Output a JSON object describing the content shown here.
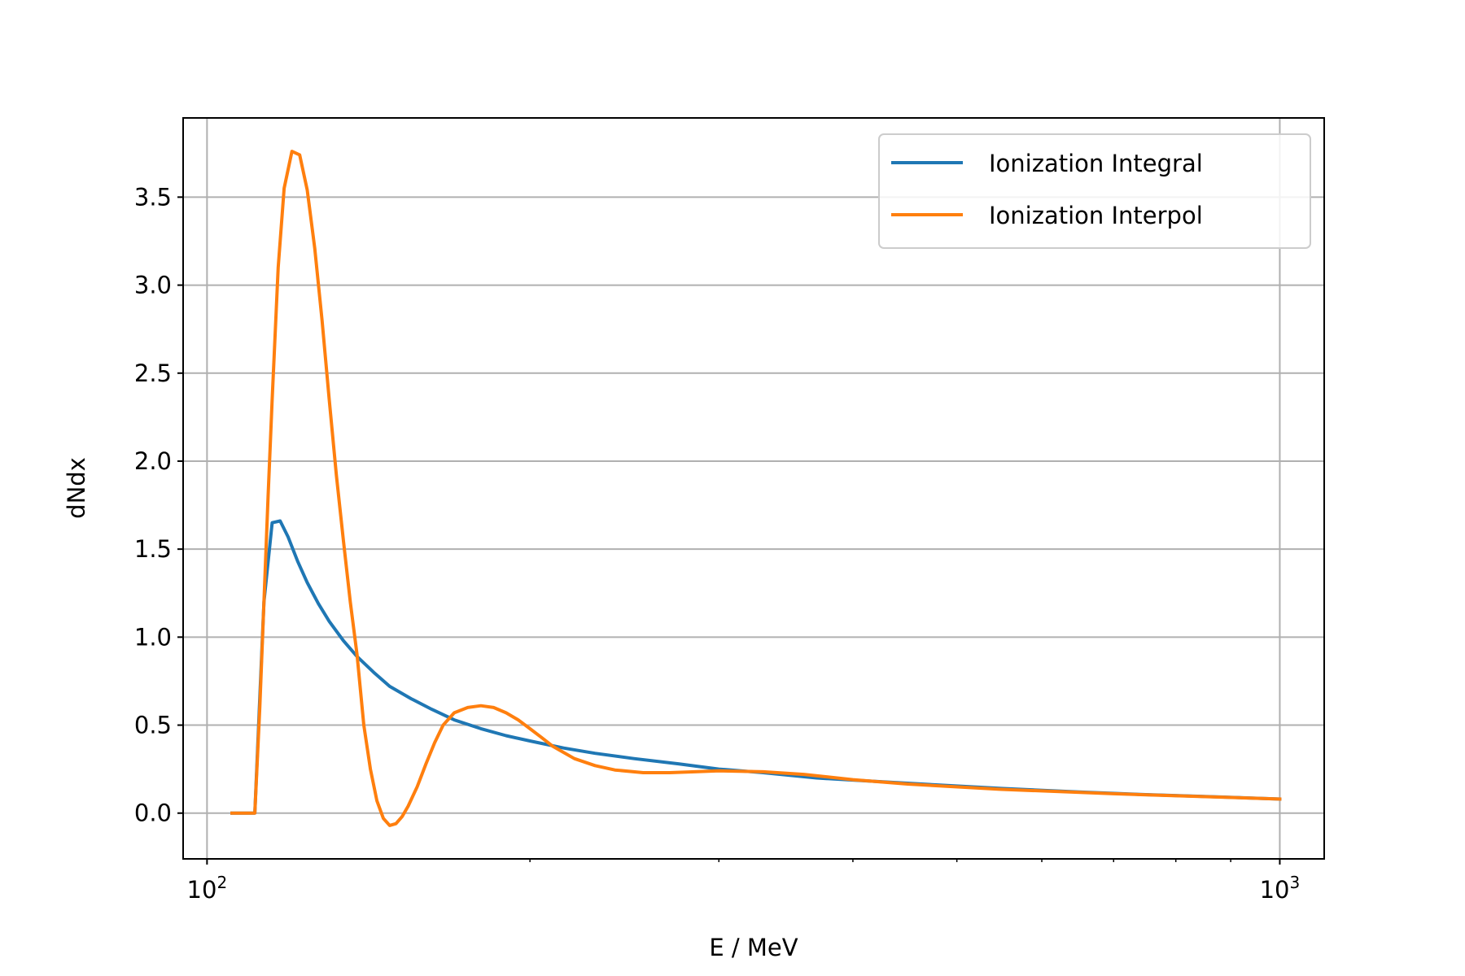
{
  "chart_data": {
    "type": "line",
    "title": "",
    "xlabel": "E / MeV",
    "ylabel": "dNdx",
    "xscale": "log",
    "xlim": [
      95,
      1100
    ],
    "ylim": [
      -0.26,
      3.95
    ],
    "grid": true,
    "legend_position": "top-right",
    "xticks": [
      {
        "value": 100,
        "base": "10",
        "exp": "2"
      },
      {
        "value": 1000,
        "base": "10",
        "exp": "3"
      }
    ],
    "yticks": [
      {
        "value": 0.0,
        "label": "0.0"
      },
      {
        "value": 0.5,
        "label": "0.5"
      },
      {
        "value": 1.0,
        "label": "1.0"
      },
      {
        "value": 1.5,
        "label": "1.5"
      },
      {
        "value": 2.0,
        "label": "2.0"
      },
      {
        "value": 2.5,
        "label": "2.5"
      },
      {
        "value": 3.0,
        "label": "3.0"
      },
      {
        "value": 3.5,
        "label": "3.5"
      }
    ],
    "series": [
      {
        "name": "Ionization Integral",
        "color": "#1f77b4",
        "x": [
          105.5,
          110.8,
          113.0,
          115.0,
          117.0,
          119.0,
          121.5,
          124.0,
          127.0,
          130.0,
          134.0,
          138.0,
          143.0,
          148.0,
          155.0,
          162.0,
          170.0,
          180.0,
          190.0,
          200.0,
          215.0,
          230.0,
          250.0,
          275.0,
          300.0,
          330.0,
          370.0,
          420.0,
          480.0,
          550.0,
          650.0,
          750.0,
          850.0,
          1000.0
        ],
        "values": [
          0.0,
          0.0,
          1.2,
          1.65,
          1.66,
          1.57,
          1.43,
          1.31,
          1.19,
          1.09,
          0.98,
          0.89,
          0.8,
          0.72,
          0.65,
          0.59,
          0.53,
          0.48,
          0.44,
          0.41,
          0.37,
          0.34,
          0.31,
          0.28,
          0.25,
          0.23,
          0.2,
          0.18,
          0.16,
          0.14,
          0.12,
          0.105,
          0.095,
          0.08
        ]
      },
      {
        "name": "Ionization Interpol",
        "color": "#ff7f0e",
        "x": [
          105.5,
          110.8,
          112.0,
          113.0,
          114.0,
          115.0,
          116.5,
          118.0,
          120.0,
          122.0,
          124.0,
          126.0,
          128.0,
          130.0,
          132.0,
          134.0,
          136.0,
          138.0,
          140.0,
          142.0,
          144.0,
          146.0,
          148.0,
          150.0,
          152.0,
          154.0,
          157.0,
          160.0,
          163.0,
          166.0,
          170.0,
          175.0,
          180.0,
          185.0,
          190.0,
          195.0,
          200.0,
          205.0,
          210.0,
          220.0,
          230.0,
          240.0,
          255.0,
          270.0,
          285.0,
          300.0,
          330.0,
          360.0,
          400.0,
          450.0,
          550.0,
          700.0,
          1000.0
        ],
        "values": [
          0.0,
          0.0,
          0.6,
          1.2,
          1.8,
          2.35,
          3.1,
          3.55,
          3.76,
          3.74,
          3.54,
          3.21,
          2.8,
          2.35,
          1.92,
          1.55,
          1.2,
          0.9,
          0.5,
          0.25,
          0.07,
          -0.03,
          -0.07,
          -0.06,
          -0.02,
          0.04,
          0.15,
          0.28,
          0.4,
          0.5,
          0.57,
          0.6,
          0.61,
          0.6,
          0.57,
          0.53,
          0.48,
          0.43,
          0.38,
          0.31,
          0.27,
          0.245,
          0.23,
          0.23,
          0.235,
          0.24,
          0.235,
          0.22,
          0.19,
          0.165,
          0.135,
          0.11,
          0.08
        ]
      }
    ]
  }
}
